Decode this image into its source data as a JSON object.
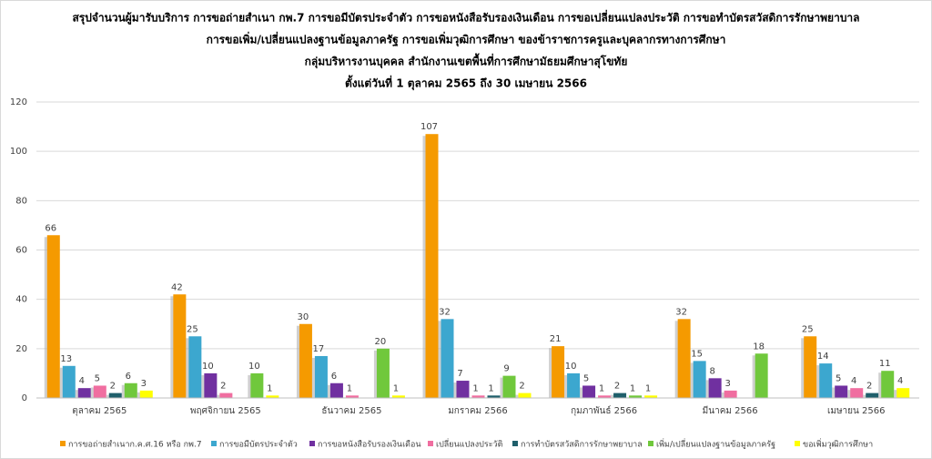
{
  "chart_data": {
    "type": "bar",
    "title": [
      "สรุปจำนวนผู้มารับบริการ การขอถ่ายสำเนา กพ.7 การขอมีบัตรประจำตัว การขอหนังสือรับรองเงินเดือน การขอเปลี่ยนแปลงประวัติ การขอทำบัตรสวัสดิการรักษาพยาบาล",
      "การขอเพิ่ม/เปลี่ยนแปลงฐานข้อมูลภาครัฐ การขอเพิ่มวุฒิการศึกษา ของข้าราชการครูและบุคลากรทางการศึกษา",
      "กลุ่มบริหารงานบุคคล สำนักงานเขตพื้นที่การศึกษามัธยมศึกษาสุโขทัย",
      "ตั้งแต่วันที่ 1 ตุลาคม 2565 ถึง 30 เมษายน 2566"
    ],
    "categories": [
      "ตุลาคม 2565",
      "พฤศจิกายน 2565",
      "ธันวาคม 2565",
      "มกราคม 2566",
      "กุมภาพันธ์ 2566",
      "มีนาคม 2566",
      "เมษายน 2566"
    ],
    "series": [
      {
        "name": "การขอถ่ายสำเนาก.ค.ศ.16 หรือ กพ.7",
        "color": "#f59a00",
        "values": [
          66,
          42,
          30,
          107,
          21,
          32,
          25
        ]
      },
      {
        "name": "การขอมีบัตรประจำตัว",
        "color": "#3ca7cf",
        "values": [
          13,
          25,
          17,
          32,
          10,
          15,
          14
        ]
      },
      {
        "name": "การขอหนังสือรับรองเงินเดือน",
        "color": "#7030a0",
        "values": [
          4,
          10,
          6,
          7,
          5,
          8,
          5
        ]
      },
      {
        "name": "เปลี่ยนแปลงประวัติ",
        "color": "#f06ea0",
        "values": [
          5,
          2,
          1,
          1,
          1,
          3,
          4
        ]
      },
      {
        "name": "การทำบัตรสวัสดิการรักษาพยาบาล",
        "color": "#1f5f6b",
        "values": [
          2,
          null,
          null,
          1,
          2,
          null,
          2
        ]
      },
      {
        "name": "เพิ่ม/เปลี่ยนแปลงฐานข้อมูลภาครัฐ",
        "color": "#70c83c",
        "values": [
          6,
          10,
          20,
          9,
          1,
          18,
          11
        ]
      },
      {
        "name": "ขอเพิ่มวุฒิการศึกษา",
        "color": "#ffff00",
        "values": [
          3,
          1,
          1,
          2,
          1,
          null,
          4
        ]
      }
    ],
    "ylim": [
      0,
      120
    ],
    "yticks": [
      0,
      20,
      40,
      60,
      80,
      100,
      120
    ],
    "grid": true
  }
}
